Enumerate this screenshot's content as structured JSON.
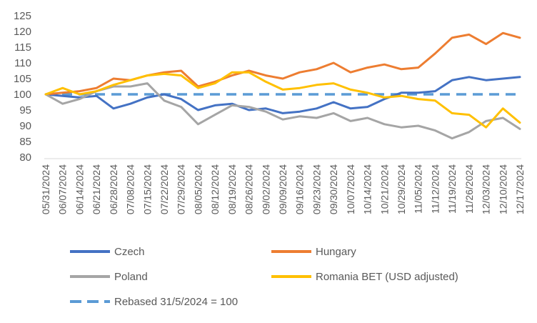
{
  "chart_data": {
    "type": "line",
    "title": "",
    "xlabel": "",
    "ylabel": "",
    "ylim": [
      80,
      125
    ],
    "yticks": [
      80,
      85,
      90,
      95,
      100,
      105,
      110,
      115,
      120,
      125
    ],
    "grid": false,
    "legend_position": "bottom",
    "x_tick_labels": [
      "05/31/2024",
      "06/07/2024",
      "06/14/2024",
      "06/21/2024",
      "06/28/2024",
      "07/08/2024",
      "07/15/2024",
      "07/22/2024",
      "07/29/2024",
      "08/05/2024",
      "08/12/2024",
      "08/19/2024",
      "08/26/2024",
      "09/02/2024",
      "09/09/2024",
      "09/16/2024",
      "09/23/2024",
      "09/30/2024",
      "10/07/2024",
      "10/14/2024",
      "10/21/2024",
      "10/29/2024",
      "11/05/2024",
      "11/12/2024",
      "11/19/2024",
      "11/26/2024",
      "12/03/2024",
      "12/10/2024",
      "12/17/2024"
    ],
    "x_period": "weekly",
    "series": [
      {
        "name": "Czech",
        "color": "#4472C4",
        "dashed": false,
        "values": [
          100,
          99.5,
          99.0,
          99.5,
          95.5,
          97.0,
          99.0,
          100.0,
          98.5,
          95.0,
          96.5,
          97.0,
          95.0,
          95.5,
          94.0,
          94.5,
          95.5,
          97.5,
          95.5,
          96.0,
          98.5,
          100.5,
          100.5,
          101.0,
          104.5,
          105.5,
          104.5,
          105.0,
          105.5
        ]
      },
      {
        "name": "Hungary",
        "color": "#ED7D31",
        "dashed": false,
        "values": [
          100,
          100.5,
          101.0,
          102.0,
          105.0,
          104.5,
          106.0,
          107.0,
          107.5,
          102.5,
          104.0,
          106.0,
          107.5,
          106.0,
          105.0,
          107.0,
          108.0,
          110.0,
          107.0,
          108.5,
          109.5,
          108.0,
          108.5,
          113.0,
          118.0,
          119.0,
          116.0,
          119.5,
          118.0
        ]
      },
      {
        "name": "Poland",
        "color": "#A5A5A5",
        "dashed": false,
        "values": [
          100,
          97.0,
          98.5,
          101.0,
          102.5,
          102.5,
          103.5,
          98.0,
          96.0,
          90.5,
          93.5,
          96.5,
          96.0,
          94.5,
          92.0,
          93.0,
          92.5,
          94.0,
          91.5,
          92.5,
          90.5,
          89.5,
          90.0,
          88.5,
          86.0,
          88.0,
          91.5,
          92.5,
          89.0
        ]
      },
      {
        "name": "Romania BET (USD adjusted)",
        "color": "#FFC000",
        "dashed": false,
        "values": [
          100,
          102.0,
          100.0,
          101.0,
          103.0,
          104.5,
          106.0,
          106.5,
          106.0,
          102.0,
          103.5,
          107.0,
          107.0,
          104.0,
          101.5,
          102.0,
          103.0,
          103.5,
          101.5,
          100.5,
          99.0,
          99.5,
          98.5,
          98.0,
          94.0,
          93.5,
          89.5,
          95.5,
          91.0
        ]
      },
      {
        "name": "Rebased 31/5/2024 = 100",
        "color": "#5B9BD5",
        "dashed": true,
        "values": [
          100,
          100,
          100,
          100,
          100,
          100,
          100,
          100,
          100,
          100,
          100,
          100,
          100,
          100,
          100,
          100,
          100,
          100,
          100,
          100,
          100,
          100,
          100,
          100,
          100,
          100,
          100,
          100,
          100
        ]
      }
    ]
  }
}
